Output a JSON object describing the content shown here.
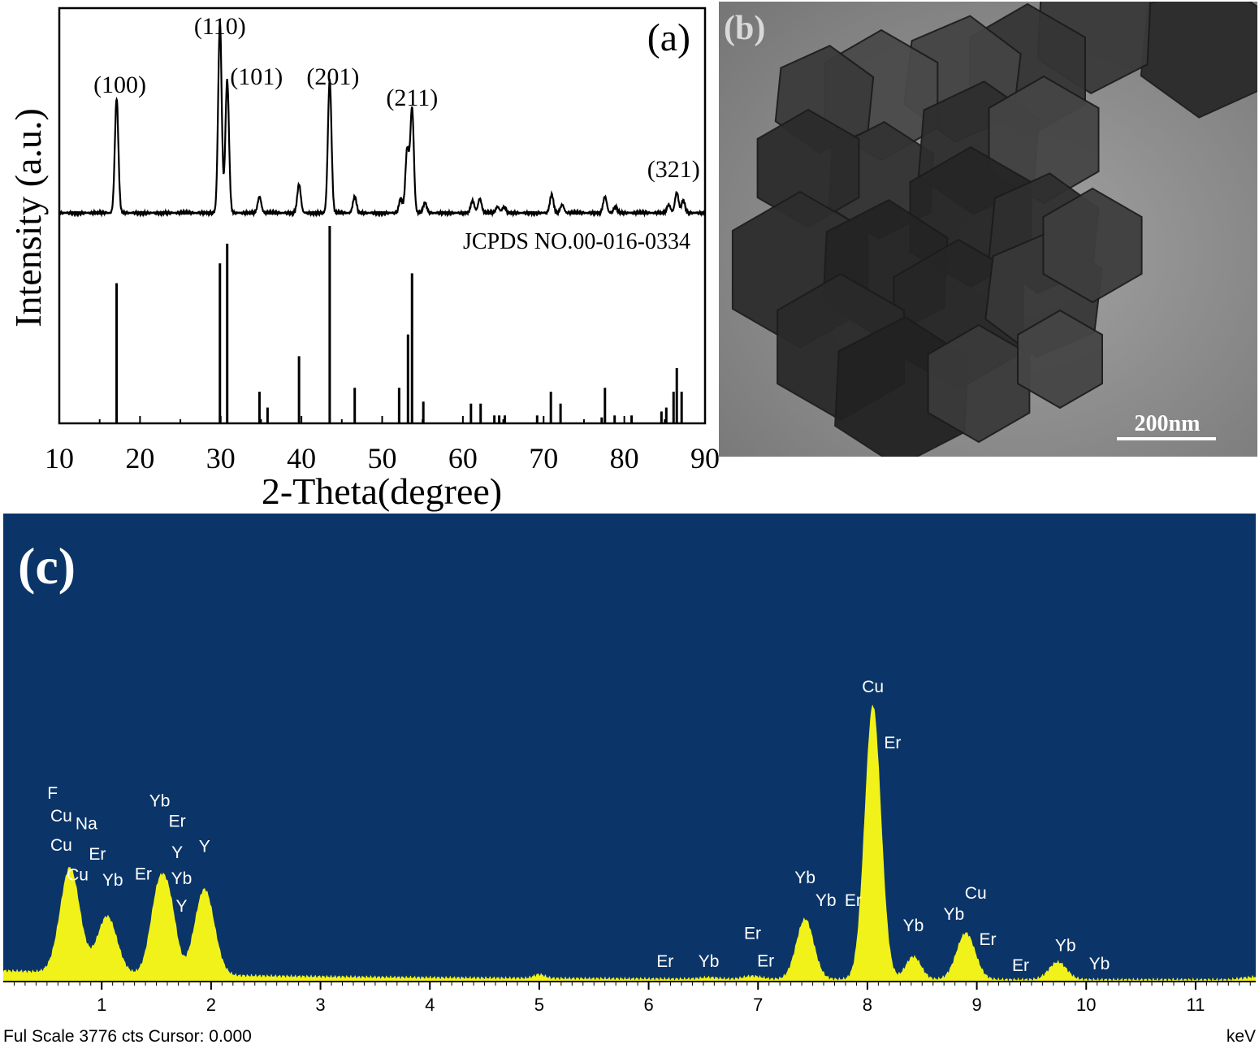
{
  "chart_data": [
    {
      "panel_label": "(a)",
      "type": "line",
      "xlabel": "2-Theta(degree)",
      "ylabel": "Intensity (a.u.)",
      "xlim": [
        10,
        90
      ],
      "xticks": [
        10,
        20,
        30,
        40,
        50,
        60,
        70,
        80,
        90
      ],
      "reference_label": "JCPDS NO.00-016-0334",
      "measured_peaks": [
        {
          "x": 17.1,
          "h": 0.56
        },
        {
          "x": 29.9,
          "h": 0.93
        },
        {
          "x": 30.8,
          "h": 0.65
        },
        {
          "x": 34.8,
          "h": 0.08
        },
        {
          "x": 39.7,
          "h": 0.14
        },
        {
          "x": 43.5,
          "h": 0.65
        },
        {
          "x": 46.6,
          "h": 0.08
        },
        {
          "x": 52.3,
          "h": 0.07
        },
        {
          "x": 53.1,
          "h": 0.31
        },
        {
          "x": 53.7,
          "h": 0.51
        },
        {
          "x": 55.3,
          "h": 0.05
        },
        {
          "x": 61.2,
          "h": 0.06
        },
        {
          "x": 62.1,
          "h": 0.07
        },
        {
          "x": 64.3,
          "h": 0.03
        },
        {
          "x": 65.1,
          "h": 0.03
        },
        {
          "x": 71.0,
          "h": 0.09
        },
        {
          "x": 72.3,
          "h": 0.04
        },
        {
          "x": 77.6,
          "h": 0.08
        },
        {
          "x": 78.9,
          "h": 0.03
        },
        {
          "x": 85.5,
          "h": 0.04
        },
        {
          "x": 86.5,
          "h": 0.1
        },
        {
          "x": 87.3,
          "h": 0.06
        }
      ],
      "peak_labels": [
        {
          "text": "(100)",
          "x": 17.1
        },
        {
          "text": "(110)",
          "x": 29.9
        },
        {
          "text": "(101)",
          "x": 30.8
        },
        {
          "text": "(201)",
          "x": 43.5
        },
        {
          "text": "(211)",
          "x": 53.7
        },
        {
          "text": "(321)",
          "x": 86.5
        }
      ],
      "reference_lines": [
        {
          "x": 17.1,
          "h": 0.71
        },
        {
          "x": 29.9,
          "h": 0.81
        },
        {
          "x": 30.8,
          "h": 0.91
        },
        {
          "x": 34.8,
          "h": 0.16
        },
        {
          "x": 35.8,
          "h": 0.08
        },
        {
          "x": 39.7,
          "h": 0.34
        },
        {
          "x": 43.5,
          "h": 1.0
        },
        {
          "x": 46.6,
          "h": 0.18
        },
        {
          "x": 52.1,
          "h": 0.18
        },
        {
          "x": 53.2,
          "h": 0.45
        },
        {
          "x": 53.7,
          "h": 0.76
        },
        {
          "x": 55.1,
          "h": 0.11
        },
        {
          "x": 61.0,
          "h": 0.1
        },
        {
          "x": 62.2,
          "h": 0.1
        },
        {
          "x": 63.9,
          "h": 0.04
        },
        {
          "x": 64.5,
          "h": 0.04
        },
        {
          "x": 65.2,
          "h": 0.04
        },
        {
          "x": 69.2,
          "h": 0.04
        },
        {
          "x": 70.9,
          "h": 0.16
        },
        {
          "x": 72.1,
          "h": 0.1
        },
        {
          "x": 77.2,
          "h": 0.03
        },
        {
          "x": 77.6,
          "h": 0.18
        },
        {
          "x": 78.8,
          "h": 0.04
        },
        {
          "x": 80.9,
          "h": 0.04
        },
        {
          "x": 84.6,
          "h": 0.06
        },
        {
          "x": 85.2,
          "h": 0.08
        },
        {
          "x": 86.1,
          "h": 0.16
        },
        {
          "x": 86.5,
          "h": 0.28
        },
        {
          "x": 87.1,
          "h": 0.16
        }
      ]
    },
    {
      "panel_label": "(c)",
      "type": "area",
      "background": "#0b3568",
      "fill": "#f2f21b",
      "xlim": [
        0.1,
        11.55
      ],
      "xticks": [
        1,
        2,
        3,
        4,
        5,
        6,
        7,
        8,
        9,
        10,
        11
      ],
      "x_unit": "keV",
      "status": "Ful Scale 3776 cts Cursor: 0.000",
      "full_scale_cts": 3776,
      "baseline_cts": 120,
      "peaks": [
        {
          "x": 0.71,
          "cts": 1380,
          "w": 0.09
        },
        {
          "x": 1.05,
          "cts": 750,
          "w": 0.09
        },
        {
          "x": 1.53,
          "cts": 1190,
          "w": 0.08
        },
        {
          "x": 1.64,
          "cts": 520,
          "w": 0.06
        },
        {
          "x": 1.94,
          "cts": 1130,
          "w": 0.09
        },
        {
          "x": 5.0,
          "cts": 50,
          "w": 0.05
        },
        {
          "x": 6.55,
          "cts": 20,
          "w": 0.08
        },
        {
          "x": 6.95,
          "cts": 40,
          "w": 0.08
        },
        {
          "x": 7.43,
          "cts": 790,
          "w": 0.08
        },
        {
          "x": 8.05,
          "cts": 3600,
          "w": 0.075
        },
        {
          "x": 8.42,
          "cts": 300,
          "w": 0.07
        },
        {
          "x": 8.9,
          "cts": 610,
          "w": 0.085
        },
        {
          "x": 9.74,
          "cts": 230,
          "w": 0.08
        }
      ],
      "labels": [
        {
          "text": "F",
          "x": 0.55,
          "cts": 2400
        },
        {
          "text": "Cu",
          "x": 0.63,
          "cts": 2100
        },
        {
          "text": "Na",
          "x": 0.86,
          "cts": 2000
        },
        {
          "text": "Cu",
          "x": 0.63,
          "cts": 1720
        },
        {
          "text": "Er",
          "x": 0.96,
          "cts": 1600
        },
        {
          "text": "Cu",
          "x": 0.78,
          "cts": 1330
        },
        {
          "text": "Yb",
          "x": 1.1,
          "cts": 1260
        },
        {
          "text": "Yb",
          "x": 1.53,
          "cts": 2300
        },
        {
          "text": "Er",
          "x": 1.69,
          "cts": 2030
        },
        {
          "text": "Er",
          "x": 1.38,
          "cts": 1340
        },
        {
          "text": "Y",
          "x": 1.69,
          "cts": 1620
        },
        {
          "text": "Yb",
          "x": 1.73,
          "cts": 1280
        },
        {
          "text": "Y",
          "x": 1.73,
          "cts": 920
        },
        {
          "text": "Y",
          "x": 1.94,
          "cts": 1700
        },
        {
          "text": "Er",
          "x": 6.15,
          "cts": 190
        },
        {
          "text": "Yb",
          "x": 6.55,
          "cts": 190
        },
        {
          "text": "Er",
          "x": 6.95,
          "cts": 560
        },
        {
          "text": "Er",
          "x": 7.07,
          "cts": 200
        },
        {
          "text": "Yb",
          "x": 7.43,
          "cts": 1290
        },
        {
          "text": "Yb",
          "x": 7.62,
          "cts": 990
        },
        {
          "text": "Er",
          "x": 7.87,
          "cts": 990
        },
        {
          "text": "Cu",
          "x": 8.05,
          "cts": 3800
        },
        {
          "text": "Er",
          "x": 8.23,
          "cts": 3060
        },
        {
          "text": "Yb",
          "x": 8.42,
          "cts": 660
        },
        {
          "text": "Yb",
          "x": 8.79,
          "cts": 810
        },
        {
          "text": "Cu",
          "x": 8.99,
          "cts": 1090
        },
        {
          "text": "Er",
          "x": 9.1,
          "cts": 480
        },
        {
          "text": "Er",
          "x": 9.4,
          "cts": 140
        },
        {
          "text": "Yb",
          "x": 9.81,
          "cts": 400
        },
        {
          "text": "Yb",
          "x": 10.12,
          "cts": 160
        }
      ]
    }
  ],
  "panels": {
    "b": {
      "label": "(b)",
      "scale_bar": "200nm"
    }
  }
}
